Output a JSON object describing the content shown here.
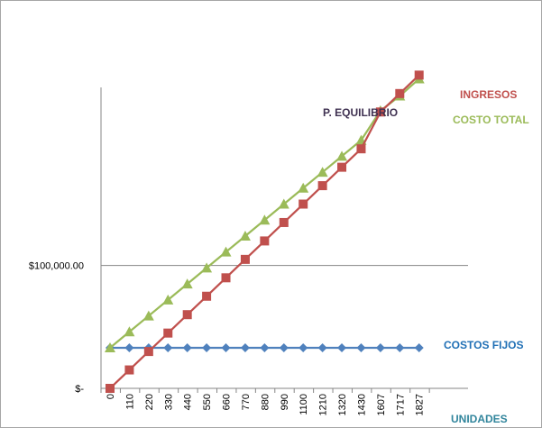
{
  "chart_data": {
    "type": "line",
    "x": [
      "0",
      "110",
      "220",
      "330",
      "440",
      "550",
      "660",
      "770",
      "880",
      "990",
      "1100",
      "1210",
      "1320",
      "1430",
      "1607",
      "1717",
      "1827"
    ],
    "series": [
      {
        "name": "INGRESOS",
        "color": "#c0504d",
        "marker": "square",
        "values": [
          0,
          15000,
          30000,
          45000,
          60000,
          75000,
          90000,
          105000,
          120000,
          135000,
          150000,
          165000,
          180000,
          195000,
          225000,
          240000,
          255000
        ]
      },
      {
        "name": "COSTO TOTAL",
        "color": "#9bbb59",
        "marker": "triangle",
        "values": [
          33000,
          46000,
          59000,
          72000,
          85000,
          98000,
          111000,
          124000,
          137000,
          150000,
          163000,
          176000,
          189000,
          202000,
          226000,
          238000,
          252000
        ]
      },
      {
        "name": "COSTOS FIJOS",
        "color": "#4f81bd",
        "marker": "diamond",
        "values": [
          33000,
          33000,
          33000,
          33000,
          33000,
          33000,
          33000,
          33000,
          33000,
          33000,
          33000,
          33000,
          33000,
          33000,
          33000,
          33000,
          33000
        ]
      }
    ],
    "ylim": [
      0,
      245000
    ],
    "y_ticks": [
      {
        "value": 0,
        "label": "$-"
      },
      {
        "value": 100000,
        "label": "$100,000.00"
      }
    ],
    "grid": true,
    "xlabel": "UNIDADES",
    "annotations": [
      {
        "text": "P. EQUILIBRIO",
        "color": "#3f3151"
      }
    ],
    "series_label_colors": {
      "INGRESOS": "#c0504d",
      "COSTO TOTAL": "#9bbb59",
      "COSTOS FIJOS": "#1f6fb5"
    },
    "xlabel_color": "#31859c"
  }
}
